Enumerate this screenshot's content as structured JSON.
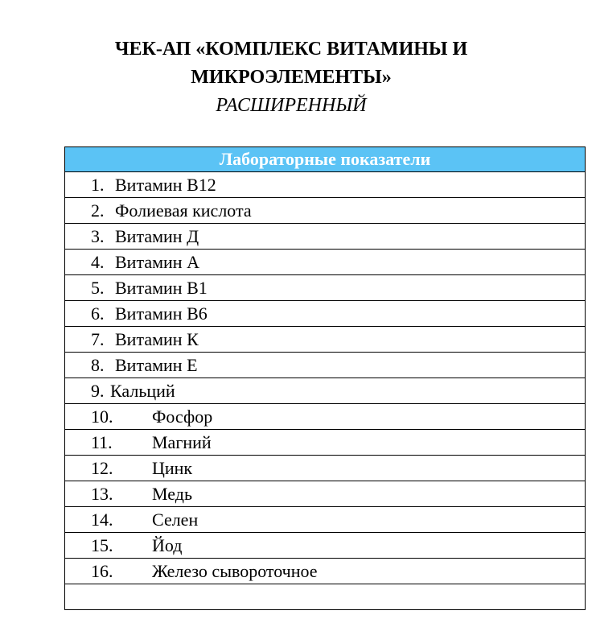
{
  "title": {
    "line1": "ЧЕК-АП «КОМПЛЕКС ВИТАМИНЫ И",
    "line2": "МИКРОЭЛЕМЕНТЫ»",
    "subtitle": "РАСШИРЕННЫЙ"
  },
  "table": {
    "header": "Лабораторные показатели",
    "header_color": "#5bc3f5",
    "rows": [
      {
        "num": "1.",
        "text": "Витамин В12"
      },
      {
        "num": "2.",
        "text": "Фолиевая кислота"
      },
      {
        "num": "3.",
        "text": "Витамин Д"
      },
      {
        "num": "4.",
        "text": "Витамин А"
      },
      {
        "num": "5.",
        "text": "Витамин В1"
      },
      {
        "num": "6.",
        "text": "Витамин В6"
      },
      {
        "num": "7.",
        "text": "Витамин К"
      },
      {
        "num": "8.",
        "text": "Витамин Е"
      },
      {
        "num": "9.",
        "text": "Кальций"
      },
      {
        "num": "10.",
        "text": "Фосфор"
      },
      {
        "num": "11.",
        "text": "Магний"
      },
      {
        "num": "12.",
        "text": "Цинк"
      },
      {
        "num": "13.",
        "text": "Медь"
      },
      {
        "num": "14.",
        "text": "Селен"
      },
      {
        "num": "15.",
        "text": "Йод"
      },
      {
        "num": "16.",
        "text": "Железо сывороточное"
      }
    ]
  }
}
